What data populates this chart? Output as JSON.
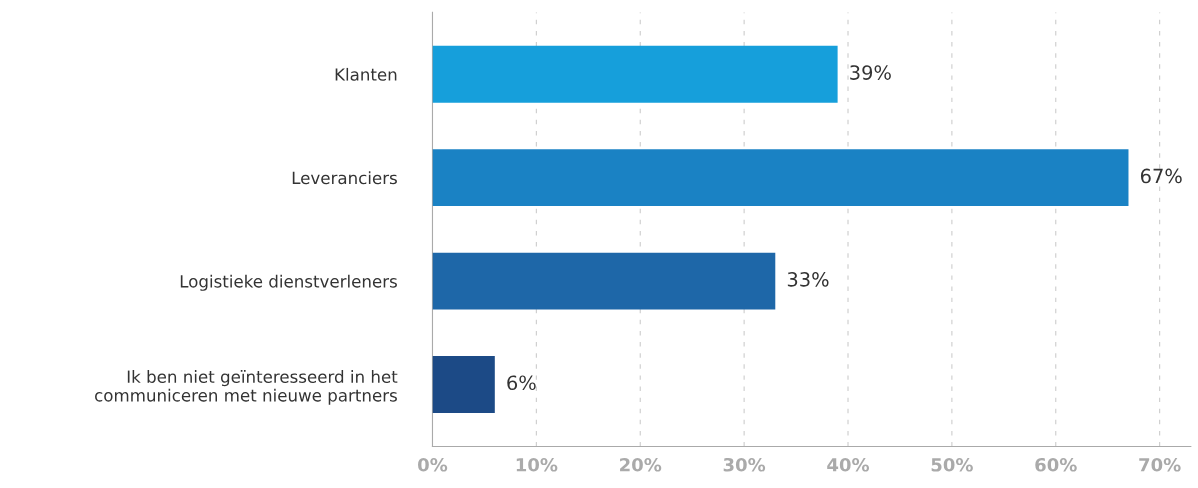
{
  "chart_data": {
    "type": "bar",
    "orientation": "horizontal",
    "categories": [
      "Klanten",
      "Leveranciers",
      "Logistieke dienstverleners",
      "Ik ben niet geïnteresseerd in het\ncommuniceren met nieuwe partners"
    ],
    "values": [
      39,
      67,
      33,
      6
    ],
    "colors": [
      "#169fdb",
      "#1a82c4",
      "#1e67a8",
      "#1c4a86"
    ],
    "xlim": [
      0,
      73
    ],
    "xticks": [
      {
        "value": 0,
        "label": "0%"
      },
      {
        "value": 10,
        "label": "10%"
      },
      {
        "value": 20,
        "label": "20%"
      },
      {
        "value": 30,
        "label": "30%"
      },
      {
        "value": 40,
        "label": "40%"
      },
      {
        "value": 50,
        "label": "50%"
      },
      {
        "value": 60,
        "label": "60%"
      },
      {
        "value": 70,
        "label": "70%"
      }
    ],
    "value_labels": [
      "39%",
      "67%",
      "33%",
      "6%"
    ],
    "grid": "x"
  }
}
